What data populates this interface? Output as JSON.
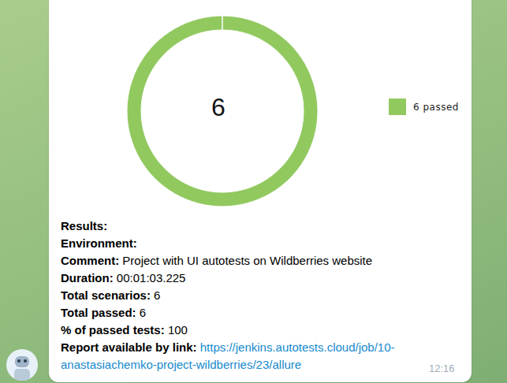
{
  "chart_data": {
    "type": "donut",
    "categories": [
      "6 passed"
    ],
    "values": [
      6
    ],
    "colors": [
      "#91c95f"
    ],
    "legend": "right"
  },
  "message": {
    "fields": [
      {
        "label": "Results:"
      },
      {
        "label": "Environment:"
      },
      {
        "label": "Comment:",
        "value": "Project with UI autotests on Wildberries website"
      },
      {
        "label": "Duration:",
        "value": "00:01:03.225"
      },
      {
        "label": "Total scenarios:",
        "value": 6
      },
      {
        "label": "Total passed:",
        "value": 6
      },
      {
        "label": "% of passed tests:",
        "value": 100
      }
    ],
    "report": {
      "label": "Report available by link:",
      "url": "https://jenkins.autotests.cloud/job/10-anastasiachemko-project-wildberries/23/allure"
    },
    "time": "12:16"
  }
}
